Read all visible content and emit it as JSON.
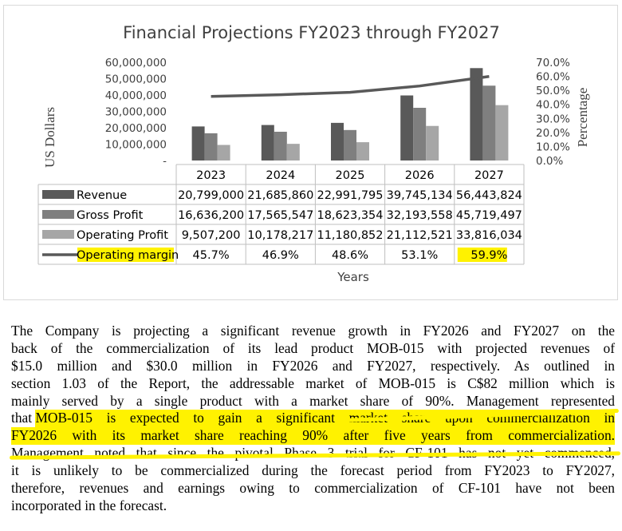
{
  "chart_data": {
    "type": "bar",
    "title": "Financial Projections FY2023 through FY2027",
    "ylabel": "US Dollars",
    "y2label": "Percentage",
    "xlabel": "Years",
    "ylim": [
      0,
      60000000
    ],
    "y_ticks": [
      "-",
      "10,000,000",
      "20,000,000",
      "30,000,000",
      "40,000,000",
      "50,000,000",
      "60,000,000"
    ],
    "y2lim": [
      0,
      70
    ],
    "y2_ticks": [
      "0.0%",
      "10.0%",
      "20.0%",
      "30.0%",
      "40.0%",
      "50.0%",
      "60.0%",
      "70.0%"
    ],
    "categories": [
      "2023",
      "2024",
      "2025",
      "2026",
      "2027"
    ],
    "series": [
      {
        "name": "Revenue",
        "type": "bar",
        "color": "#595959",
        "values": [
          20799000,
          21685860,
          22991795,
          39745134,
          56443824
        ],
        "labels": [
          "20,799,000",
          "21,685,860",
          "22,991,795",
          "39,745,134",
          "56,443,824"
        ]
      },
      {
        "name": "Gross Profit",
        "type": "bar",
        "color": "#7f7f7f",
        "values": [
          16636200,
          17565547,
          18623354,
          32193558,
          45719497
        ],
        "labels": [
          "16,636,200",
          "17,565,547",
          "18,623,354",
          "32,193,558",
          "45,719,497"
        ]
      },
      {
        "name": "Operating Profit",
        "type": "bar",
        "color": "#a6a6a6",
        "values": [
          9507200,
          10178217,
          11180852,
          21112521,
          33816034
        ],
        "labels": [
          "9,507,200",
          "10,178,217",
          "11,180,852",
          "21,112,521",
          "33,816,034"
        ]
      },
      {
        "name": "Operating margin",
        "type": "line",
        "axis": "secondary",
        "color": "#595959",
        "values": [
          45.7,
          46.9,
          48.6,
          53.1,
          59.9
        ],
        "labels": [
          "45.7%",
          "46.9%",
          "48.6%",
          "53.1%",
          "59.9%"
        ]
      }
    ],
    "highlight_color": "#fff200"
  },
  "paragraph": {
    "lines": [
      "The Company is projecting a significant revenue growth in FY2026 and FY2027 on the",
      "back of the commercialization of its lead product MOB-015 with projected revenues of",
      "$15.0 million and $30.0 million in FY2026 and FY2027, respectively. As outlined in",
      "section 1.03 of the Report, the addressable market of MOB-015 is C$82 million which is",
      "mainly served by a single product with a market share of 90%. Management represented",
      "that ",
      "MOB-015 is expected to gain a significant market share upon commercialization in",
      "FY2026 with its market share reaching 90% after five years from commercialization.",
      "Management noted that since the pivotal Phase 3 trial for CF-101 has not yet commenced,",
      "it is unlikely to be commercialized during the forecast period from FY2023 to FY2027,",
      "therefore, revenues and earnings owing to commercialization of CF-101 have not been",
      "incorporated in the forecast."
    ]
  }
}
